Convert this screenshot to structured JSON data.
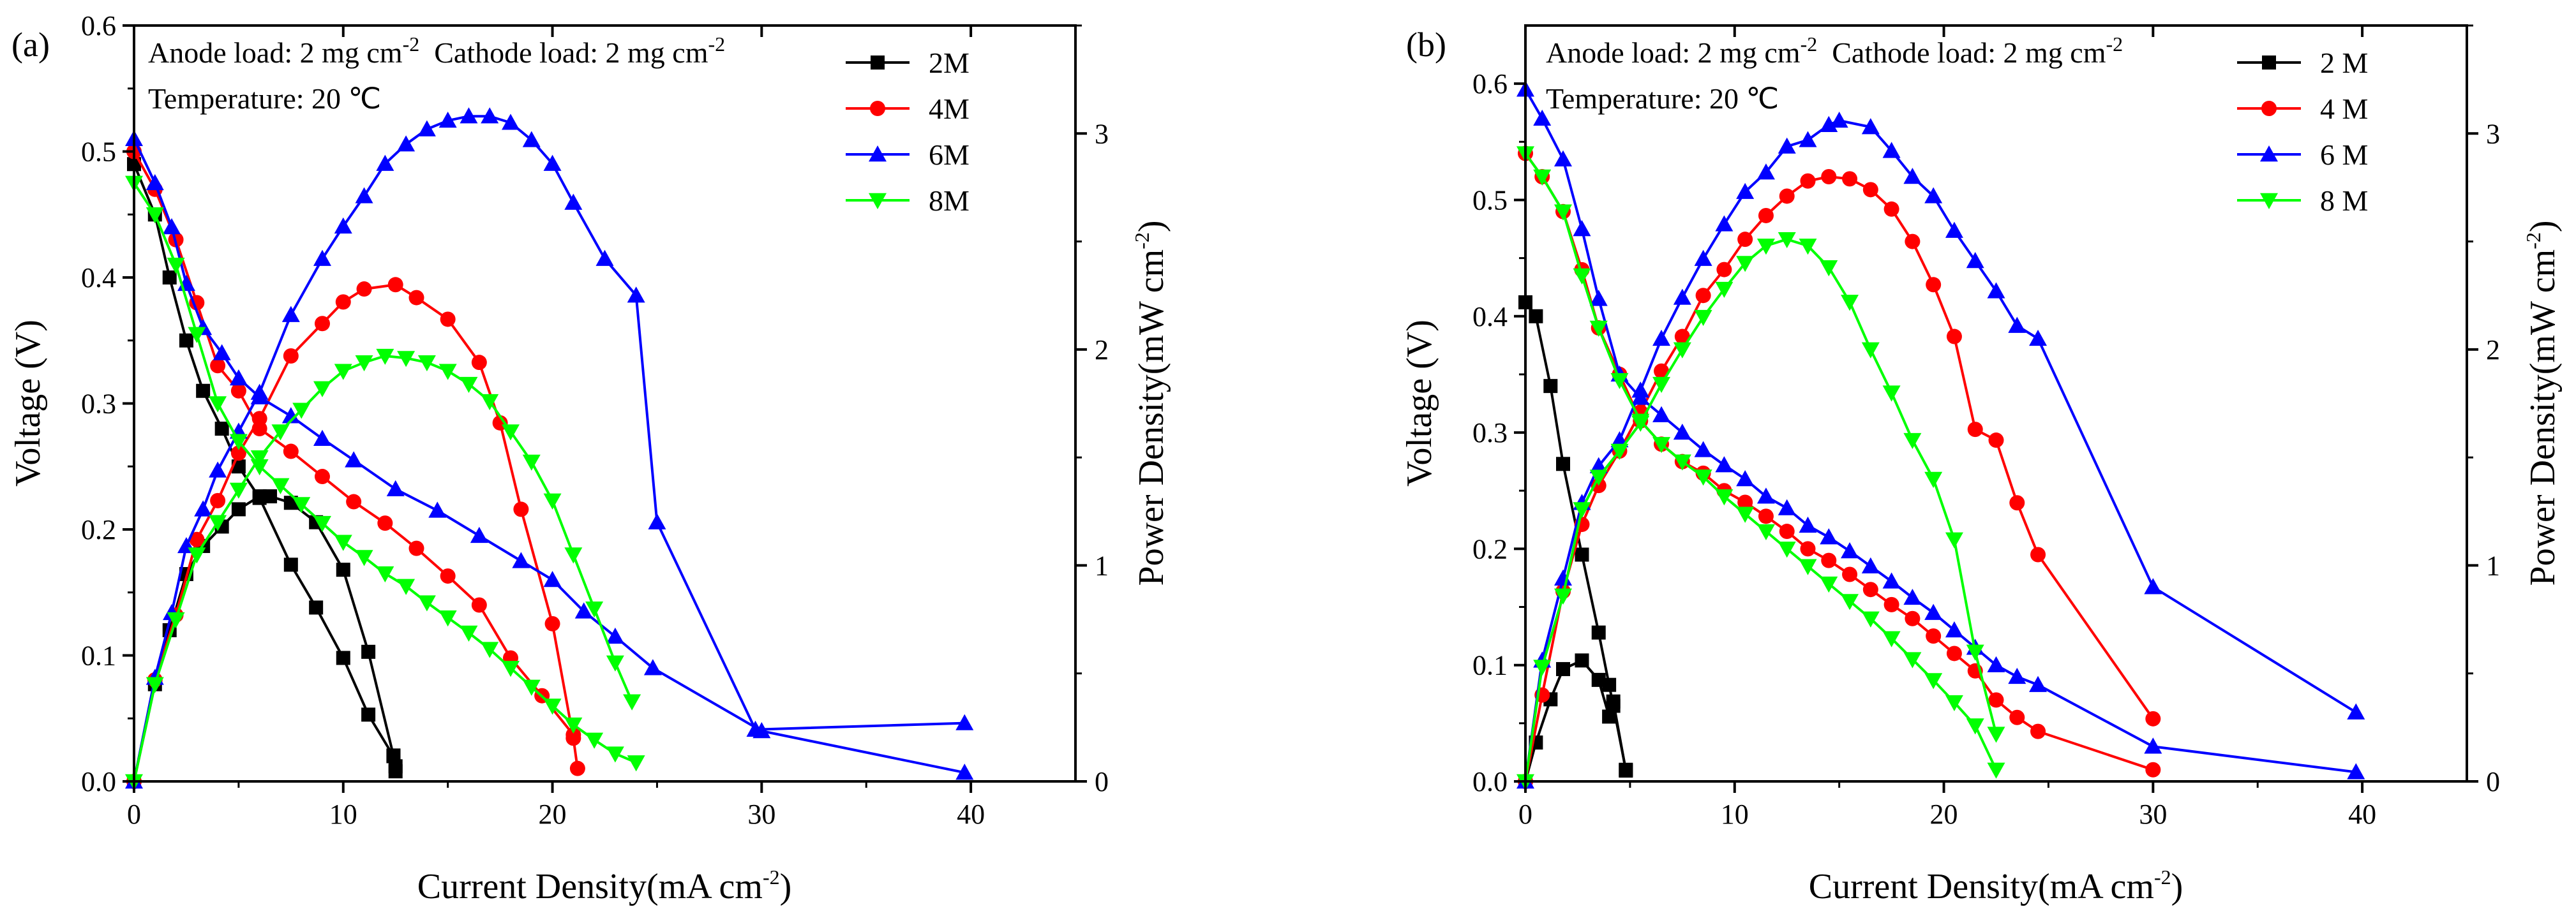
{
  "chart_data": [
    {
      "type": "line",
      "panel_label": "(a)",
      "annotation_line1_a": "Anode load: 2 mg cm",
      "annotation_line1_a_sup": "-2",
      "annotation_line1_b": "  Cathode load: 2 mg cm",
      "annotation_line1_b_sup": "-2",
      "annotation_line2": "Temperature: 20 ℃",
      "xlabel": "Current Density(mA cm",
      "xlabel_sup": "-2",
      "xlabel_end": ")",
      "ylabel": "Voltage (V)",
      "y2label": "Power Density(mW cm",
      "y2label_sup": "-2",
      "y2label_end": ")",
      "xlim": [
        0,
        45
      ],
      "ylim": [
        0,
        0.6
      ],
      "y2lim": [
        0,
        3.5
      ],
      "xticks": [
        0,
        10,
        20,
        30,
        40
      ],
      "yticks": [
        0.0,
        0.1,
        0.2,
        0.3,
        0.4,
        0.5,
        0.6
      ],
      "y2ticks": [
        0,
        1,
        2,
        3
      ],
      "legend_position": "top-right",
      "series": [
        {
          "name": "2M",
          "color": "#000000",
          "marker": "square",
          "voltage": {
            "x": [
              0,
              1,
              1.7,
              2.5,
              3.3,
              4.2,
              5,
              6,
              7.5,
              8.7,
              10,
              11.2,
              12.4,
              12.5
            ],
            "y": [
              0.49,
              0.45,
              0.4,
              0.35,
              0.31,
              0.28,
              0.25,
              0.225,
              0.172,
              0.138,
              0.098,
              0.053,
              0.02,
              0.008
            ]
          },
          "power": {
            "x": [
              0,
              1,
              1.7,
              2.5,
              3.3,
              4.2,
              5,
              6,
              6.5,
              7.5,
              8.7,
              10,
              11.2,
              12.4,
              12.5
            ],
            "y": [
              0,
              0.45,
              0.7,
              0.96,
              1.09,
              1.18,
              1.26,
              1.32,
              1.32,
              1.29,
              1.2,
              0.98,
              0.6,
              0.12,
              0.07
            ]
          }
        },
        {
          "name": "4M",
          "color": "#ff0000",
          "marker": "circle",
          "voltage": {
            "x": [
              0,
              1,
              2,
              3,
              4,
              5,
              6,
              7.5,
              9,
              10.5,
              12,
              13.5,
              15,
              16.5,
              18,
              19.5,
              21
            ],
            "y": [
              0.5,
              0.47,
              0.43,
              0.38,
              0.33,
              0.31,
              0.28,
              0.262,
              0.242,
              0.222,
              0.205,
              0.185,
              0.163,
              0.14,
              0.098,
              0.068,
              0.037
            ]
          },
          "power": {
            "x": [
              0,
              1,
              2,
              3,
              4,
              5,
              6,
              7.5,
              9,
              10,
              11,
              12.5,
              13.5,
              15,
              16.5,
              17.5,
              18.5,
              20,
              21,
              21.2
            ],
            "y": [
              0,
              0.47,
              0.77,
              1.12,
              1.3,
              1.52,
              1.68,
              1.97,
              2.12,
              2.22,
              2.28,
              2.3,
              2.24,
              2.14,
              1.94,
              1.66,
              1.26,
              0.73,
              0.2,
              0.06
            ]
          }
        },
        {
          "name": "6M",
          "color": "#0000ff",
          "marker": "triangle-up",
          "voltage": {
            "x": [
              0,
              1,
              1.8,
              2.5,
              3.3,
              4.2,
              5,
              6,
              7.5,
              9,
              10.5,
              12.5,
              14.5,
              16.5,
              18.5,
              20,
              21.5,
              23,
              24.8,
              30,
              39.7
            ],
            "y": [
              0.51,
              0.475,
              0.44,
              0.395,
              0.36,
              0.34,
              0.32,
              0.305,
              0.29,
              0.272,
              0.255,
              0.232,
              0.215,
              0.195,
              0.175,
              0.16,
              0.135,
              0.115,
              0.09,
              0.04,
              0.007
            ]
          },
          "power": {
            "x": [
              0,
              1,
              1.8,
              2.5,
              3.3,
              4,
              5,
              6,
              7.5,
              9,
              10,
              11,
              12,
              13,
              14,
              15,
              16,
              17,
              18,
              19,
              20,
              21,
              22.5,
              24,
              25,
              29.7,
              39.7
            ],
            "y": [
              0,
              0.48,
              0.78,
              1.09,
              1.26,
              1.44,
              1.62,
              1.8,
              2.16,
              2.42,
              2.57,
              2.71,
              2.86,
              2.95,
              3.02,
              3.06,
              3.08,
              3.08,
              3.05,
              2.97,
              2.86,
              2.68,
              2.42,
              2.25,
              1.2,
              0.24,
              0.27
            ]
          }
        },
        {
          "name": "8M",
          "color": "#00ff00",
          "marker": "triangle-down",
          "voltage": {
            "x": [
              0,
              1,
              2,
              3,
              4,
              5,
              6,
              7,
              8,
              9,
              10,
              11,
              12,
              13,
              14,
              15,
              16,
              17,
              18,
              19,
              20,
              21,
              22,
              23,
              24
            ],
            "y": [
              0.475,
              0.45,
              0.41,
              0.355,
              0.3,
              0.27,
              0.25,
              0.235,
              0.22,
              0.205,
              0.19,
              0.178,
              0.165,
              0.155,
              0.142,
              0.13,
              0.118,
              0.105,
              0.09,
              0.075,
              0.06,
              0.045,
              0.033,
              0.022,
              0.015
            ]
          },
          "power": {
            "x": [
              0,
              1,
              2,
              3,
              4,
              5,
              6,
              7,
              8,
              9,
              10,
              11,
              12,
              13,
              14,
              15,
              16,
              17,
              18,
              19,
              20,
              21,
              22,
              23,
              23.8
            ],
            "y": [
              0,
              0.45,
              0.75,
              1.05,
              1.2,
              1.35,
              1.5,
              1.62,
              1.72,
              1.82,
              1.9,
              1.94,
              1.97,
              1.96,
              1.94,
              1.9,
              1.84,
              1.76,
              1.62,
              1.48,
              1.3,
              1.05,
              0.8,
              0.55,
              0.37
            ]
          }
        }
      ]
    },
    {
      "type": "line",
      "panel_label": "(b)",
      "annotation_line1_a": "Anode load: 2 mg cm",
      "annotation_line1_a_sup": "-2",
      "annotation_line1_b": "  Cathode load: 2 mg cm",
      "annotation_line1_b_sup": "-2",
      "annotation_line2": "Temperature: 20 ℃",
      "xlabel": "Current Density(mA cm",
      "xlabel_sup": "-2",
      "xlabel_end": ")",
      "ylabel": "Voltage (V)",
      "y2label": "Power Density(mW cm",
      "y2label_sup": "-2",
      "y2label_end": ")",
      "xlim": [
        0,
        45
      ],
      "ylim": [
        0,
        0.65
      ],
      "y2lim": [
        0,
        3.5
      ],
      "xticks": [
        0,
        10,
        20,
        30,
        40
      ],
      "yticks": [
        0.0,
        0.1,
        0.2,
        0.3,
        0.4,
        0.5,
        0.6
      ],
      "y2ticks": [
        0,
        1,
        2,
        3
      ],
      "legend_position": "top-right",
      "series": [
        {
          "name": "2 M",
          "color": "#000000",
          "marker": "square",
          "voltage": {
            "x": [
              0,
              0.5,
              1.2,
              1.8,
              2.7,
              3.5,
              4,
              4.2,
              4.8
            ],
            "y": [
              0.412,
              0.4,
              0.34,
              0.273,
              0.195,
              0.128,
              0.083,
              0.065,
              0.01
            ]
          },
          "power": {
            "x": [
              0,
              0.5,
              1.2,
              1.8,
              2.7,
              3.5,
              4,
              4.2,
              4.8
            ],
            "y": [
              0,
              0.18,
              0.38,
              0.52,
              0.56,
              0.47,
              0.3,
              0.37,
              0.05
            ]
          }
        },
        {
          "name": "4 M",
          "color": "#ff0000",
          "marker": "circle",
          "voltage": {
            "x": [
              0,
              0.8,
              1.8,
              2.7,
              3.5,
              4.5,
              5.5,
              6.5,
              7.5,
              8.5,
              9.5,
              10.5,
              11.5,
              12.5,
              13.5,
              14.5,
              15.5,
              16.5,
              17.5,
              18.5,
              19.5,
              20.5,
              21.5,
              22.5,
              23.5,
              24.5,
              30
            ],
            "y": [
              0.54,
              0.52,
              0.49,
              0.44,
              0.39,
              0.35,
              0.31,
              0.29,
              0.275,
              0.265,
              0.25,
              0.24,
              0.228,
              0.215,
              0.2,
              0.19,
              0.178,
              0.165,
              0.152,
              0.14,
              0.125,
              0.11,
              0.095,
              0.07,
              0.055,
              0.043,
              0.01
            ]
          },
          "power": {
            "x": [
              0,
              0.8,
              1.8,
              2.7,
              3.5,
              4.5,
              5.5,
              6.5,
              7.5,
              8.5,
              9.5,
              10.5,
              11.5,
              12.5,
              13.5,
              14.5,
              15.5,
              16.5,
              17.5,
              18.5,
              19.5,
              20.5,
              21.5,
              22.5,
              23.5,
              24.5,
              30
            ],
            "y": [
              0,
              0.4,
              0.88,
              1.19,
              1.37,
              1.53,
              1.71,
              1.9,
              2.06,
              2.25,
              2.37,
              2.51,
              2.62,
              2.71,
              2.78,
              2.8,
              2.79,
              2.74,
              2.65,
              2.5,
              2.3,
              2.06,
              1.63,
              1.58,
              1.29,
              1.05,
              0.29
            ]
          }
        },
        {
          "name": "6 M",
          "color": "#0000ff",
          "marker": "triangle-up",
          "voltage": {
            "x": [
              0,
              0.8,
              1.8,
              2.7,
              3.5,
              4.5,
              5.5,
              6.5,
              7.5,
              8.5,
              9.5,
              10.5,
              11.5,
              12.5,
              13.5,
              14.5,
              15.5,
              16.5,
              17.5,
              18.5,
              19.5,
              20.5,
              21.5,
              22.5,
              23.5,
              24.5,
              30,
              39.7
            ],
            "y": [
              0.595,
              0.57,
              0.535,
              0.475,
              0.415,
              0.35,
              0.33,
              0.315,
              0.3,
              0.285,
              0.272,
              0.26,
              0.245,
              0.235,
              0.22,
              0.21,
              0.198,
              0.185,
              0.172,
              0.158,
              0.145,
              0.13,
              0.115,
              0.1,
              0.09,
              0.083,
              0.03,
              0.008
            ]
          },
          "power": {
            "x": [
              0,
              0.8,
              1.8,
              2.7,
              3.5,
              4.5,
              5.5,
              6.5,
              7.5,
              8.5,
              9.5,
              10.5,
              11.5,
              12.5,
              13.5,
              14.5,
              15,
              16.5,
              17.5,
              18.5,
              19.5,
              20.5,
              21.5,
              22.5,
              23.5,
              24.5,
              30,
              39.7
            ],
            "y": [
              0,
              0.56,
              0.94,
              1.29,
              1.46,
              1.58,
              1.81,
              2.05,
              2.24,
              2.42,
              2.58,
              2.73,
              2.82,
              2.94,
              2.97,
              3.04,
              3.06,
              3.03,
              2.92,
              2.8,
              2.71,
              2.55,
              2.41,
              2.27,
              2.11,
              2.05,
              0.9,
              0.32
            ]
          }
        },
        {
          "name": "8 M",
          "color": "#00ff00",
          "marker": "triangle-down",
          "voltage": {
            "x": [
              0,
              0.8,
              1.8,
              2.7,
              3.5,
              4.5,
              5.5,
              6.5,
              7.5,
              8.5,
              9.5,
              10.5,
              11.5,
              12.5,
              13.5,
              14.5,
              15.5,
              16.5,
              17.5,
              18.5,
              19.5,
              20.5,
              21.5,
              22.5
            ],
            "y": [
              0.54,
              0.52,
              0.49,
              0.435,
              0.39,
              0.345,
              0.31,
              0.29,
              0.275,
              0.262,
              0.245,
              0.23,
              0.215,
              0.2,
              0.185,
              0.17,
              0.155,
              0.14,
              0.123,
              0.105,
              0.087,
              0.068,
              0.048,
              0.01
            ]
          },
          "power": {
            "x": [
              0,
              0.8,
              1.8,
              2.7,
              3.5,
              4.5,
              5.5,
              6.5,
              7.5,
              8.5,
              9.5,
              10.5,
              11.5,
              12.5,
              13.5,
              14.5,
              15.5,
              16.5,
              17.5,
              18.5,
              19.5,
              20.5,
              21.5,
              22.5
            ],
            "y": [
              0,
              0.53,
              0.86,
              1.26,
              1.41,
              1.53,
              1.66,
              1.84,
              2.0,
              2.15,
              2.28,
              2.4,
              2.48,
              2.51,
              2.48,
              2.38,
              2.22,
              2.0,
              1.8,
              1.58,
              1.4,
              1.12,
              0.6,
              0.22
            ]
          }
        }
      ]
    }
  ]
}
